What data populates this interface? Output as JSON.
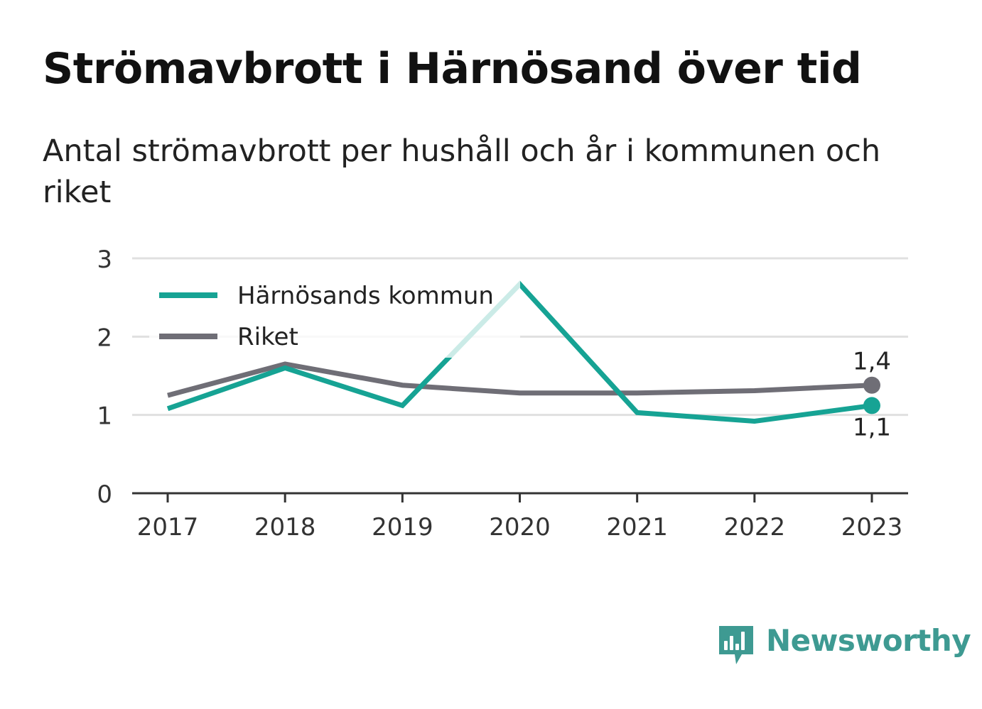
{
  "title": "Strömavbrott i Härnösand över tid",
  "subtitle": "Antal strömavbrott per hushåll och år i kommunen och riket",
  "brand": {
    "name": "Newsworthy",
    "color": "#3e9a92"
  },
  "chart_data": {
    "type": "line",
    "title": "Strömavbrott i Härnösand över tid",
    "subtitle": "Antal strömavbrott per hushåll och år i kommunen och riket",
    "xlabel": "",
    "ylabel": "",
    "categories": [
      "2017",
      "2018",
      "2019",
      "2020",
      "2021",
      "2022",
      "2023"
    ],
    "ylim": [
      0,
      3
    ],
    "yticks": [
      0,
      1,
      2,
      3
    ],
    "grid": true,
    "legend_position": "top-left",
    "series": [
      {
        "name": "Härnösands kommun",
        "color": "#16a394",
        "values": [
          1.08,
          1.6,
          1.12,
          2.67,
          1.03,
          0.92,
          1.12
        ],
        "end_label": "1,1"
      },
      {
        "name": "Riket",
        "color": "#6f6e76",
        "values": [
          1.25,
          1.65,
          1.38,
          1.28,
          1.28,
          1.31,
          1.38
        ],
        "end_label": "1,4"
      }
    ]
  }
}
